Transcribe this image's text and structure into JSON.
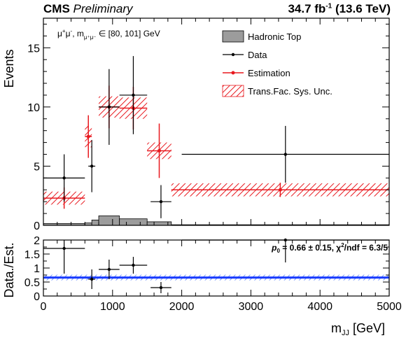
{
  "header": {
    "experiment": "CMS",
    "status": "Preliminary",
    "lumi_prefix": "34.7 fb",
    "lumi_exp": "-1",
    "energy": "(13.6 TeV)"
  },
  "colors": {
    "data": "#000000",
    "estimation": "#e8191f",
    "hadronic_top": "#9c9c9c",
    "ratio_fit": "#1a3cff",
    "ratio_band": "#3b6cff"
  },
  "chart_data": [
    {
      "type": "bar",
      "title": "",
      "xlabel": "",
      "ylabel": "Events",
      "xlim": [
        0,
        5000
      ],
      "ylim": [
        0,
        17.5
      ],
      "yticks": [
        "0",
        "5",
        "10",
        "15"
      ],
      "grid": false,
      "legend_position": "top-right",
      "annotation": "μ⁺μ⁻, m_μ⁺μ⁻ ∈ [80, 101] GeV",
      "bin_edges": [
        0,
        600,
        700,
        800,
        1100,
        1500,
        1850,
        5000
      ],
      "series": [
        {
          "name": "Hadronic Top",
          "type": "histogram",
          "values": [
            0.15,
            0.2,
            0.45,
            0.8,
            0.55,
            0.3,
            0.05
          ]
        },
        {
          "name": "Data",
          "type": "points",
          "values": [
            4.0,
            5.0,
            10.0,
            11.0,
            2.0,
            6.0
          ],
          "x": [
            300,
            700,
            950,
            1300,
            1700,
            3500
          ],
          "xerr": [
            300,
            50,
            150,
            200,
            150,
            1500
          ],
          "yerr": [
            2.0,
            2.2,
            3.2,
            3.3,
            1.4,
            2.4
          ]
        },
        {
          "name": "Estimation",
          "type": "points",
          "x": [
            300,
            650,
            950,
            1300,
            1675,
            3425
          ],
          "values": [
            2.3,
            7.5,
            10.0,
            9.9,
            6.3,
            3.0
          ],
          "xerr": [
            300,
            50,
            150,
            200,
            175,
            1575
          ],
          "yerr": [
            0.9,
            1.8,
            1.8,
            1.8,
            2.3,
            0.6
          ]
        },
        {
          "name": "Trans.Fac. Sys. Unc.",
          "type": "band",
          "values": [
            2.3,
            7.5,
            10.0,
            9.9,
            6.3,
            3.0
          ],
          "band_halfwidth": [
            0.55,
            0.9,
            0.9,
            0.9,
            0.7,
            0.55
          ]
        }
      ]
    },
    {
      "type": "scatter",
      "title": "",
      "xlabel": "m_JJ [GeV]",
      "ylabel": "Data./Est.",
      "xlim": [
        0,
        5000
      ],
      "ylim": [
        0,
        2
      ],
      "xticks": [
        "0",
        "1000",
        "2000",
        "3000",
        "4000",
        "5000"
      ],
      "yticks": [
        "0",
        "0.5",
        "1",
        "1.5",
        "2"
      ],
      "fit_annotation": "p₀ = 0.66 ± 0.15,  χ²/ndf = 6.3/5",
      "fit": {
        "p0": 0.66,
        "p0_err": 0.15,
        "chi2": 6.3,
        "ndf": 5,
        "band": [
          0.56,
          0.76
        ]
      },
      "series": [
        {
          "name": "Data./Est.",
          "x": [
            300,
            700,
            950,
            1300,
            1700,
            3500
          ],
          "xerr": [
            300,
            50,
            150,
            200,
            150,
            1500
          ],
          "values": [
            1.7,
            0.6,
            0.95,
            1.1,
            0.3,
            2.0
          ],
          "yerr": [
            0.9,
            0.35,
            0.35,
            0.3,
            0.2,
            0.8
          ]
        }
      ]
    }
  ],
  "text": {
    "y_label_main": "Events",
    "y_label_ratio": "Data./Est.",
    "x_label_main": "m",
    "x_label_sub": "JJ",
    "x_label_unit": " [GeV]",
    "annotation_main": "μ",
    "annotation_sup1": "+",
    "annotation_mid": "μ",
    "annotation_sup2": "-",
    "annotation_rest": ", m",
    "annotation_sub": "μ⁺μ⁻",
    "annotation_range": " ∈ [80, 101] GeV",
    "legend": [
      "Hadronic Top",
      "Data",
      "Estimation",
      "Trans.Fac. Sys. Unc."
    ],
    "fit_p": "p",
    "fit_p_sub": "0",
    "fit_value": " = 0.66 ± 0.15,  χ",
    "fit_chi_sup": "2",
    "fit_ndf": "/ndf = 6.3/5"
  }
}
